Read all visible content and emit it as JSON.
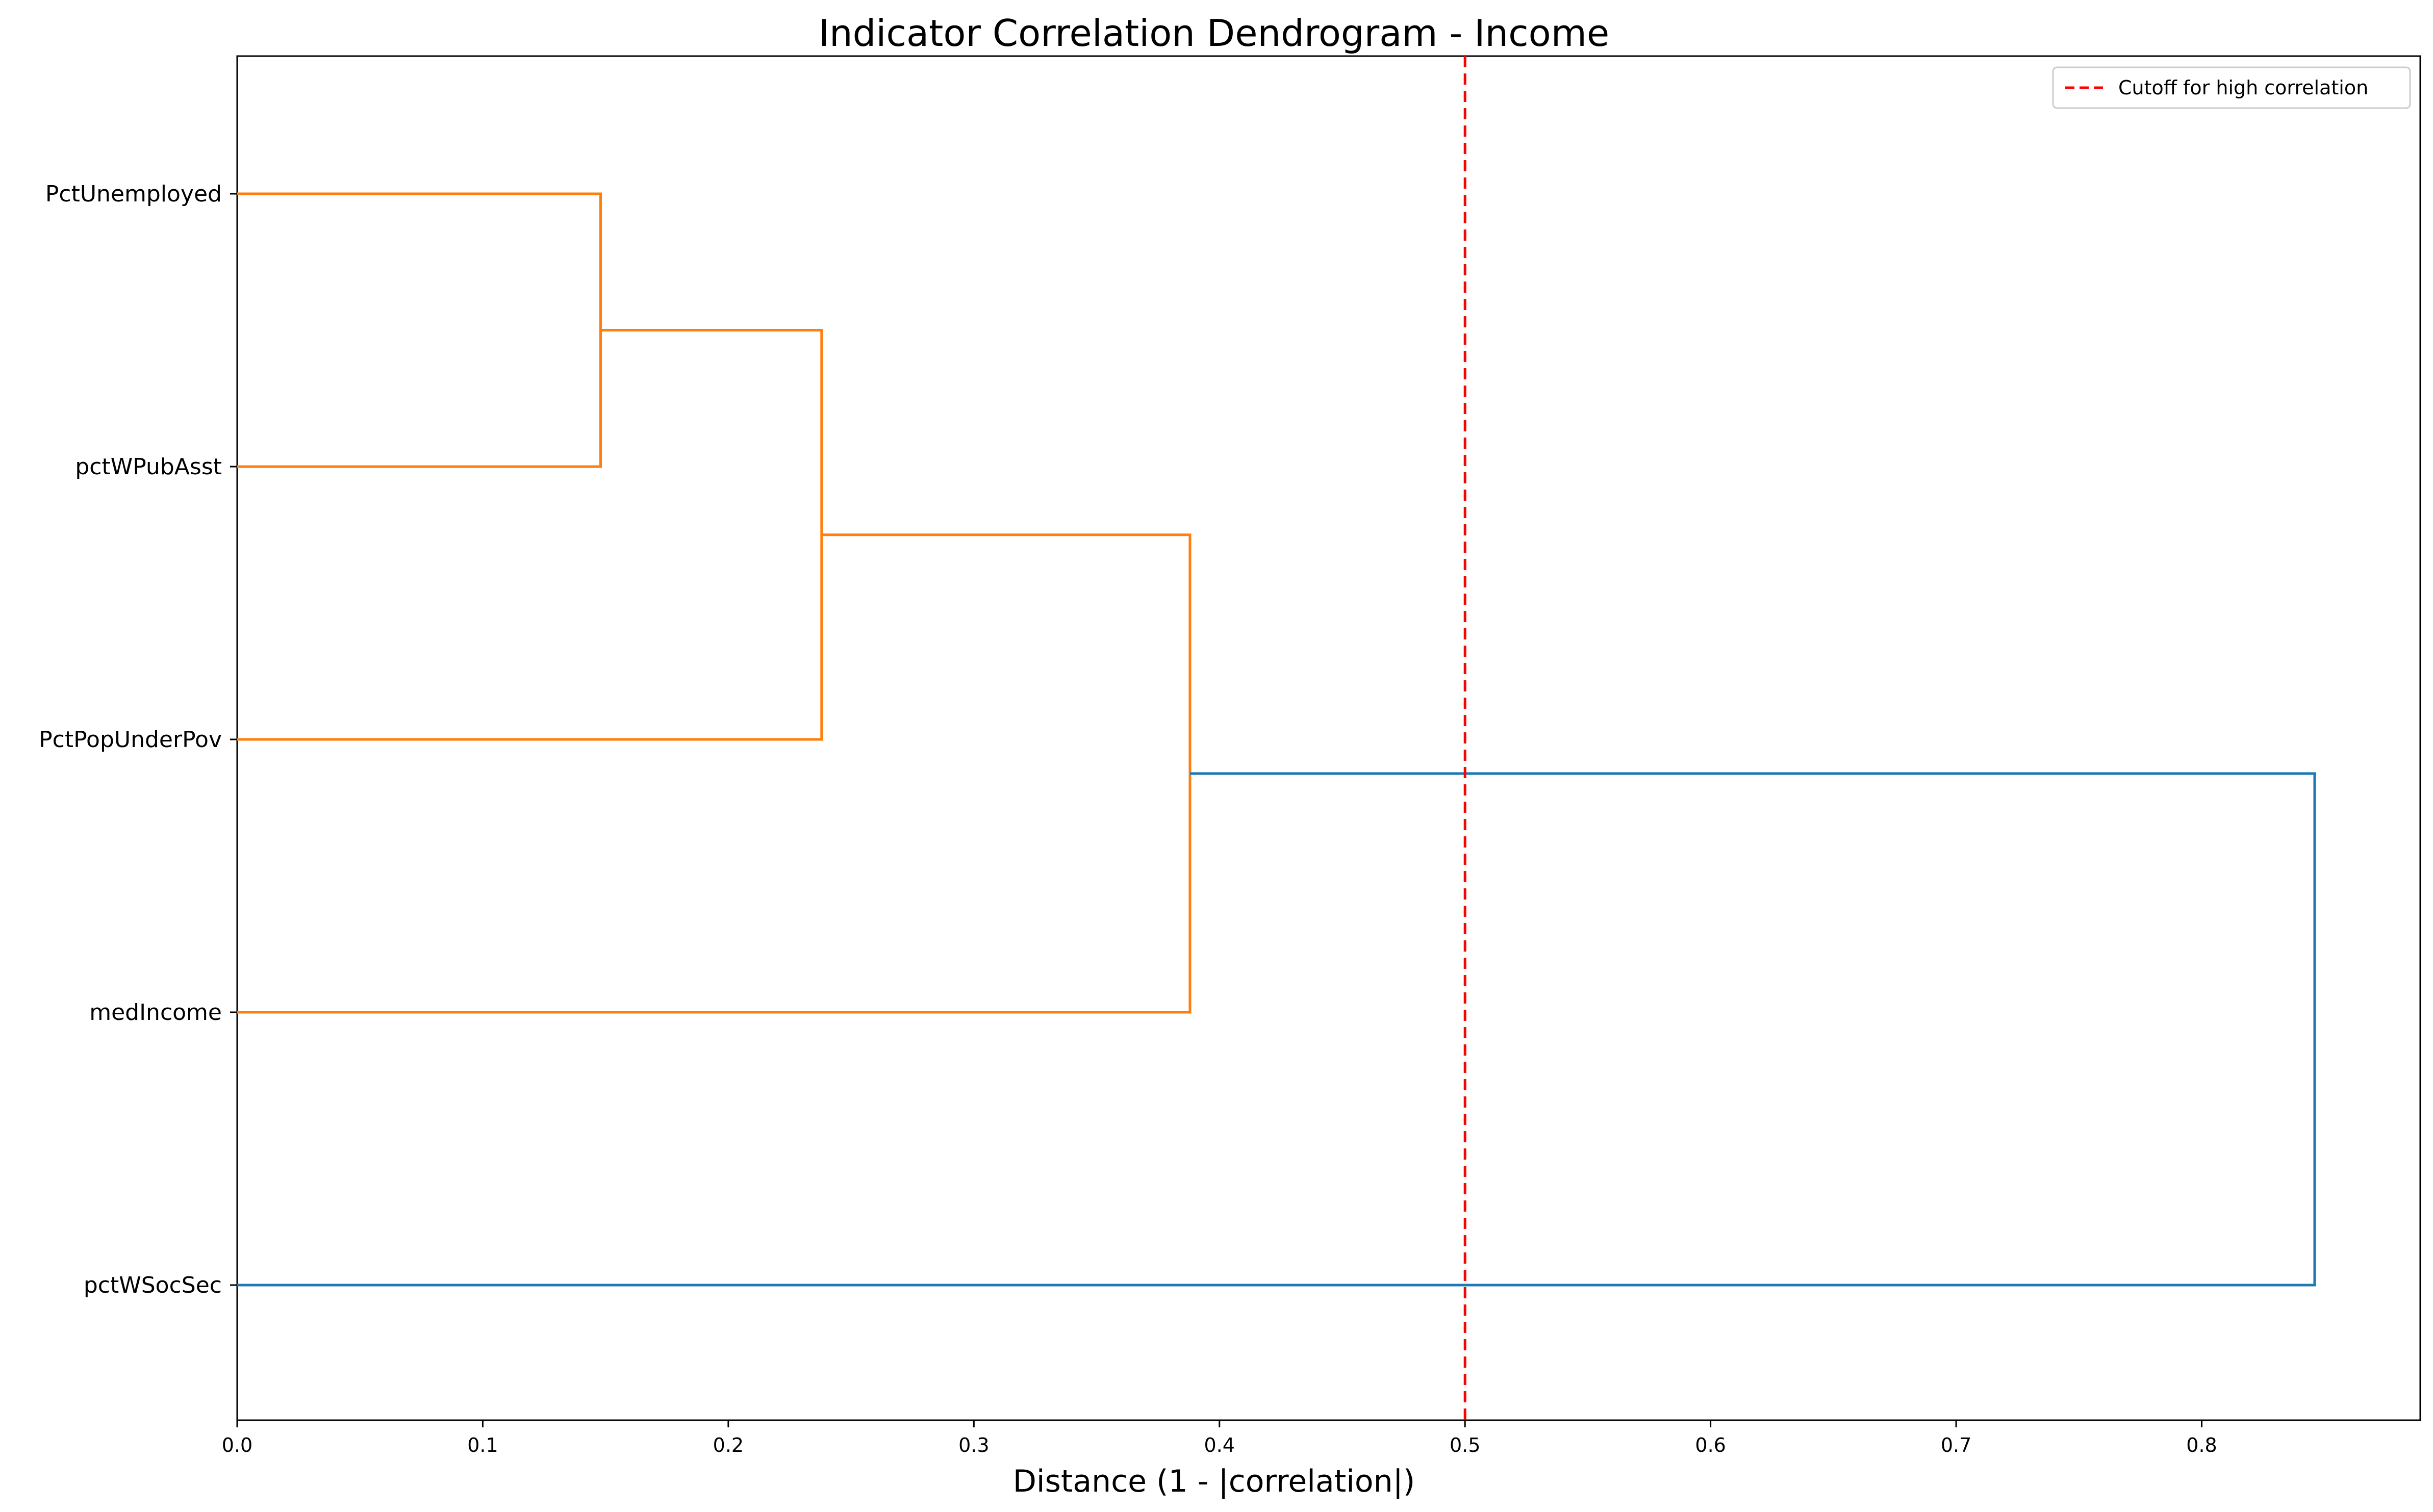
{
  "chart_data": {
    "type": "dendrogram",
    "title": "Indicator Correlation Dendrogram - Income",
    "xlabel": "Distance (1 - |correlation|)",
    "ylabel": "",
    "xlim": [
      0,
      0.889
    ],
    "xticks": [
      "0.0",
      "0.1",
      "0.2",
      "0.3",
      "0.4",
      "0.5",
      "0.6",
      "0.7",
      "0.8"
    ],
    "leaves": [
      "PctUnemployed",
      "pctWPubAsst",
      "PctPopUnderPov",
      "medIncome",
      "pctWSocSec"
    ],
    "merges": [
      {
        "left": "PctUnemployed",
        "right": "pctWPubAsst",
        "distance": 0.148,
        "color": "#ff7f0e"
      },
      {
        "left": "PctUnemployed + pctWPubAsst",
        "right": "PctPopUnderPov",
        "distance": 0.238,
        "color": "#ff7f0e"
      },
      {
        "left": "PctUnemployed + pctWPubAsst + PctPopUnderPov",
        "right": "medIncome",
        "distance": 0.388,
        "color": "#ff7f0e"
      },
      {
        "left": "PctUnemployed + pctWPubAsst + PctPopUnderPov + medIncome",
        "right": "pctWSocSec",
        "distance": 0.846,
        "color": "#1f77b4"
      }
    ],
    "cutoff": {
      "value": 0.5,
      "label": "Cutoff for high correlation",
      "color": "#ff0000",
      "style": "dashed"
    },
    "legend": {
      "entries": [
        "Cutoff for high correlation"
      ],
      "placement": "top-right"
    },
    "grid": false,
    "colors": {
      "cluster": "#ff7f0e",
      "link": "#1f77b4",
      "cutoff": "#ff0000"
    }
  }
}
